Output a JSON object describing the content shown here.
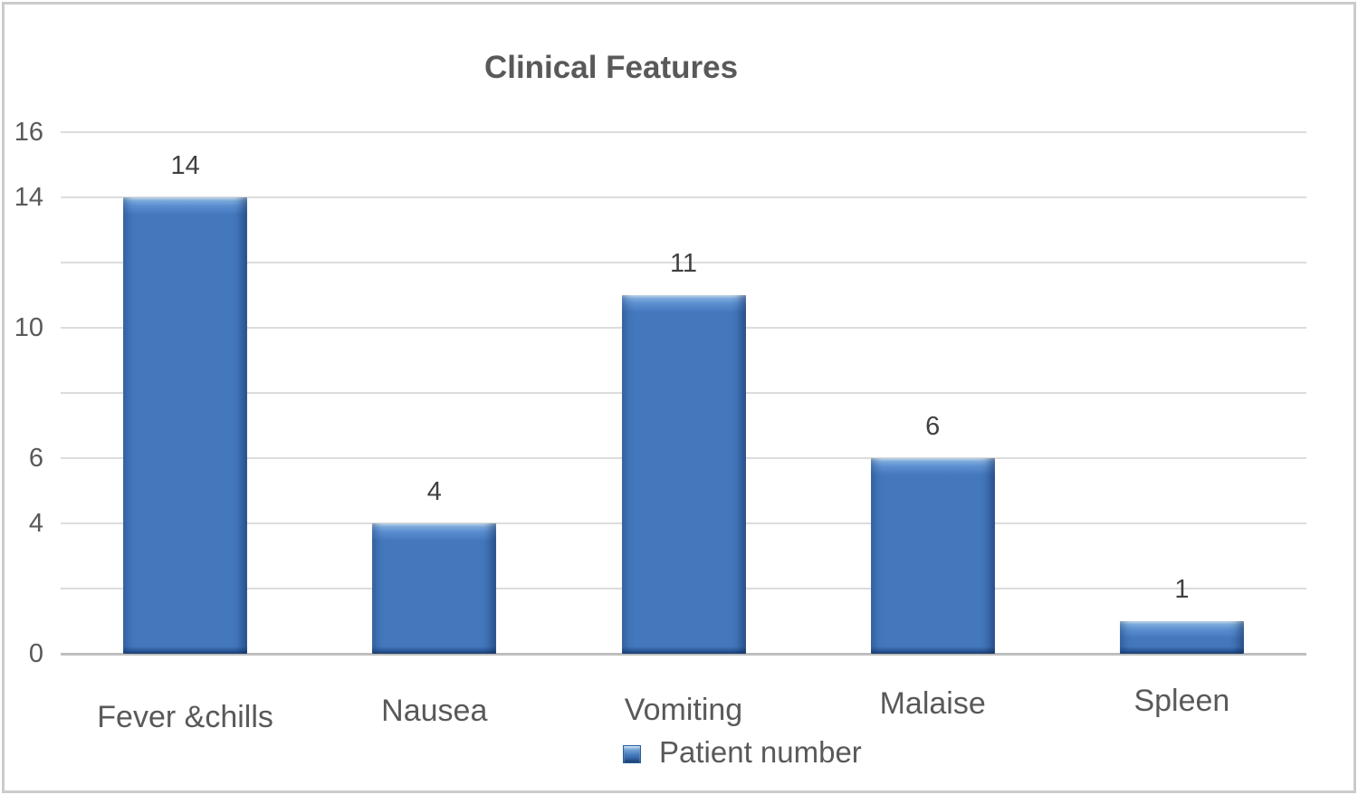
{
  "figure": {
    "background": "#FFFFFF",
    "border_color": "#CBCBCB"
  },
  "chart_data": {
    "type": "bar",
    "title": "Clinical Features",
    "categories": [
      "Fever &chills",
      "Nausea",
      "Vomiting",
      "Malaise",
      "Spleen"
    ],
    "values": [
      14,
      4,
      11,
      6,
      1
    ],
    "series": [
      {
        "name": "Patient number",
        "values": [
          14,
          4,
          11,
          6,
          1
        ]
      }
    ],
    "value_labels": [
      "14",
      "4",
      "11",
      "6",
      "1"
    ],
    "xlabel": "",
    "ylabel": "",
    "ylim": [
      0,
      16
    ],
    "gridline_step": 2,
    "y_tick_labels_visible": [
      "16",
      "14",
      "10",
      "6",
      "4",
      "0"
    ],
    "grid": true,
    "legend": {
      "label": "Patient number",
      "position": "bottom"
    },
    "colors": {
      "bar_fill": "#4478BD",
      "bar_highlight": "#93C0E9",
      "bar_mid_highlight": "#5C8FD0",
      "bar_bottom_shade": "#2D5A9B",
      "bar_shadow": "#1F4170",
      "gridline": "#DCDCDC",
      "axis_line": "#BFBFBF",
      "title_text": "#595959",
      "axis_text": "#595959",
      "value_text": "#404040"
    }
  }
}
